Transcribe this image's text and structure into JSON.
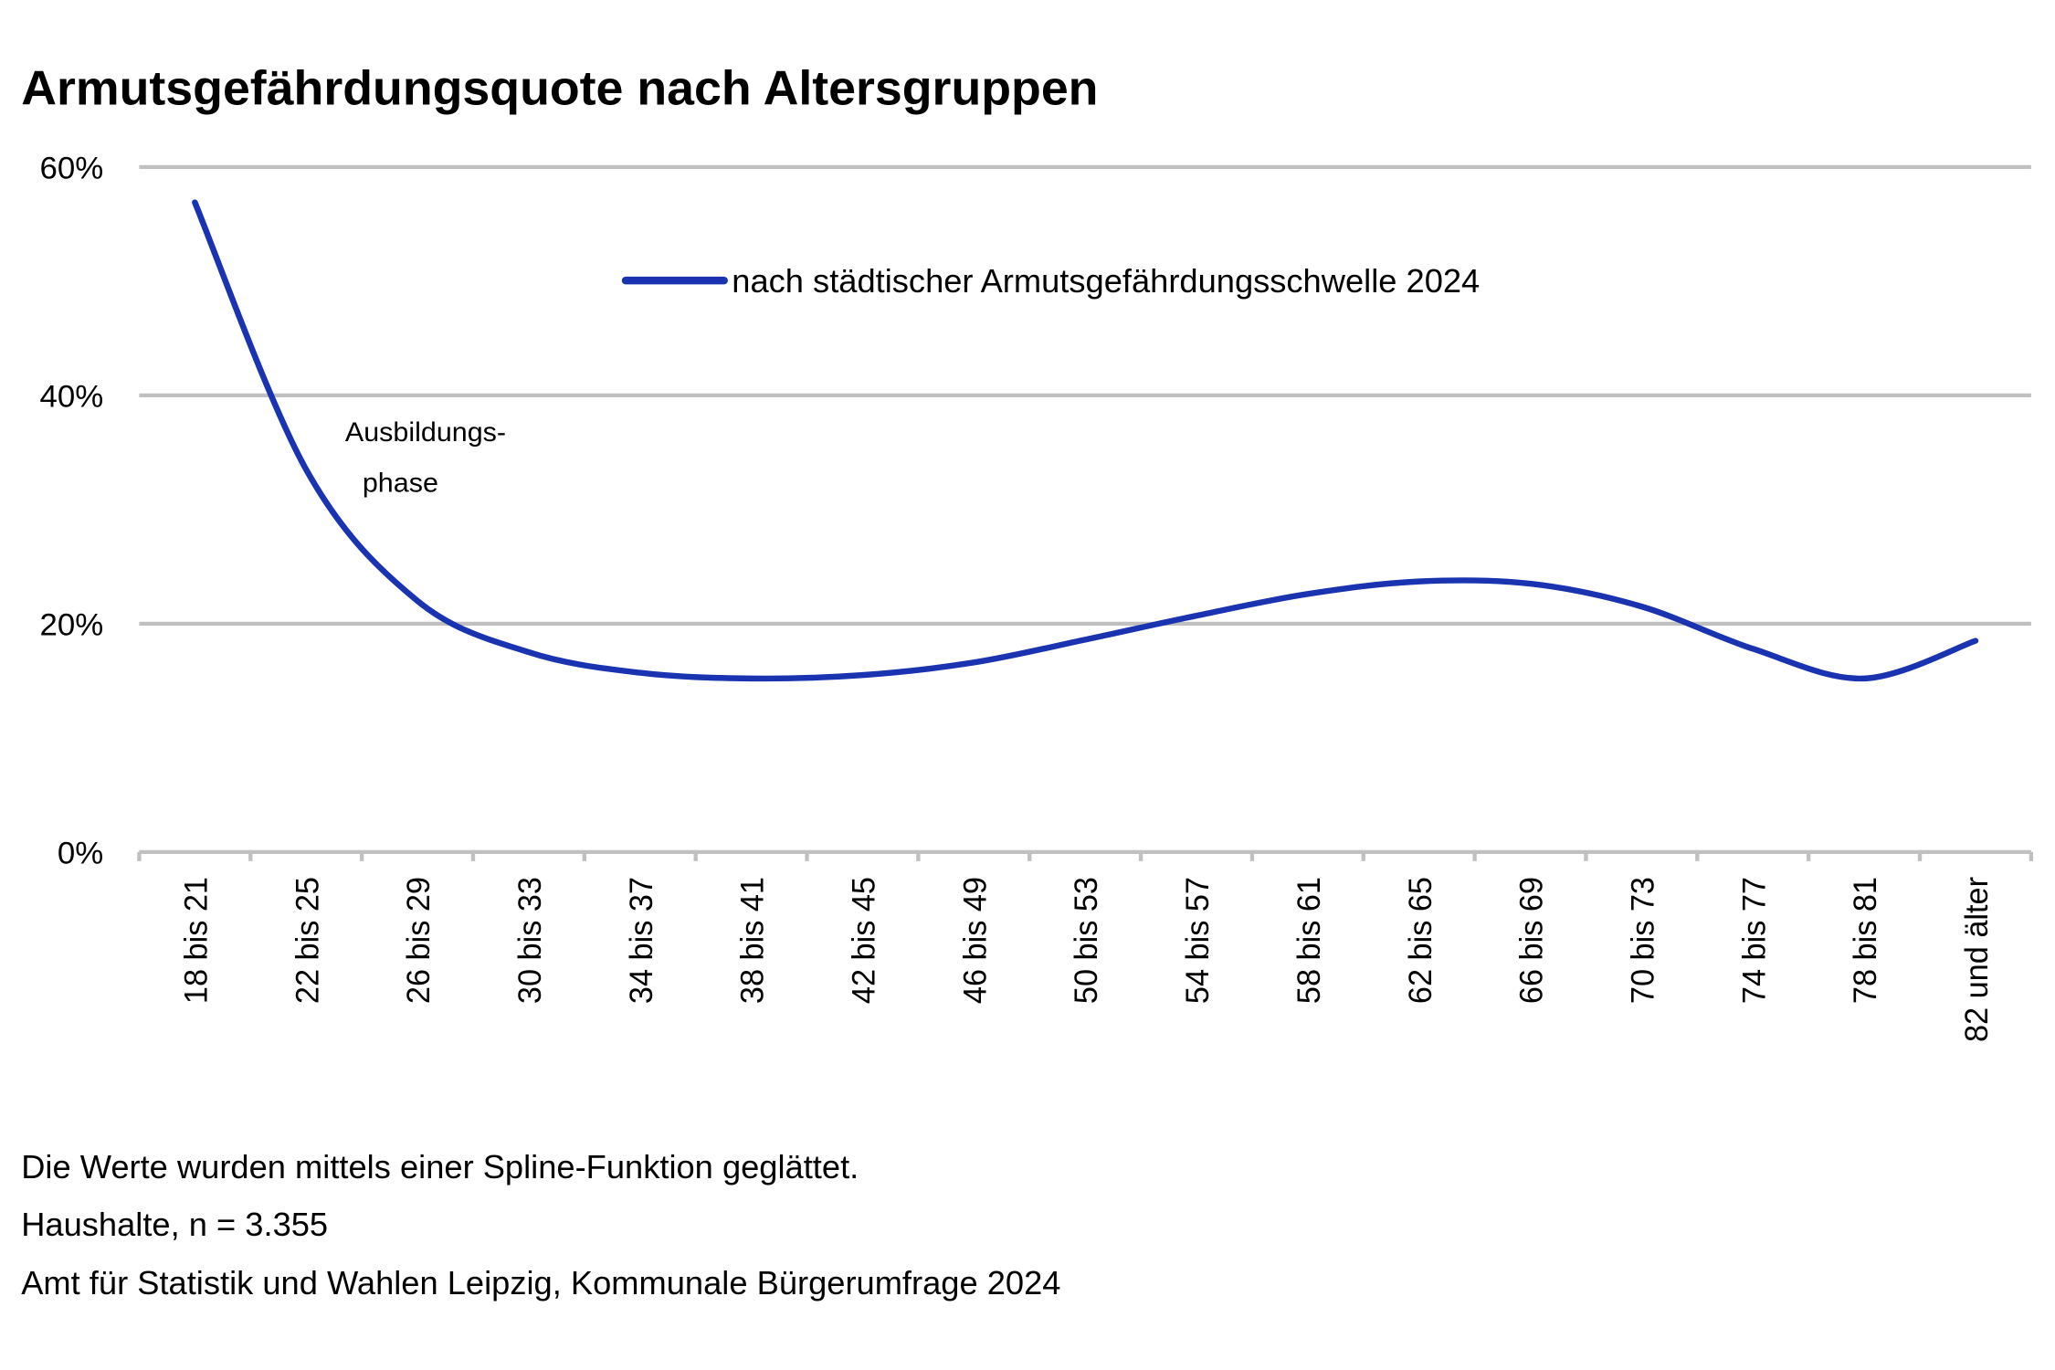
{
  "chart_data": {
    "type": "line",
    "title": "Armutsgefährdungsquote nach Altersgruppen",
    "categories": [
      "18 bis 21",
      "22 bis 25",
      "26 bis 29",
      "30 bis 33",
      "34 bis 37",
      "38 bis 41",
      "42 bis 45",
      "46 bis 49",
      "50 bis 53",
      "54 bis 57",
      "58 bis 61",
      "62 bis 65",
      "66 bis 69",
      "70 bis 73",
      "74 bis 77",
      "78 bis 81",
      "82 und älter"
    ],
    "series": [
      {
        "name": "nach städtischer Armutsgefährdungsschwelle 2024",
        "color": "#1a33b0",
        "values": [
          56.9,
          33.5,
          22.0,
          17.5,
          15.7,
          15.2,
          15.5,
          16.6,
          18.6,
          20.7,
          22.6,
          23.7,
          23.5,
          21.5,
          17.8,
          15.2,
          18.5
        ]
      }
    ],
    "ylim": [
      0,
      60
    ],
    "yticks": [
      0,
      20,
      40,
      60
    ],
    "ytick_labels": [
      "0%",
      "20%",
      "40%",
      "60%"
    ],
    "grid": true,
    "legend_position": "top-center",
    "smoothing": "spline",
    "annotation": {
      "line1": "Ausbildungs-",
      "line2": "phase"
    }
  },
  "footer": {
    "note": "Die Werte wurden mittels einer Spline-Funktion geglättet.",
    "sample": "Haushalte, n = 3.355",
    "source": "Amt für Statistik und Wahlen Leipzig, Kommunale Bürgerumfrage 2024"
  }
}
